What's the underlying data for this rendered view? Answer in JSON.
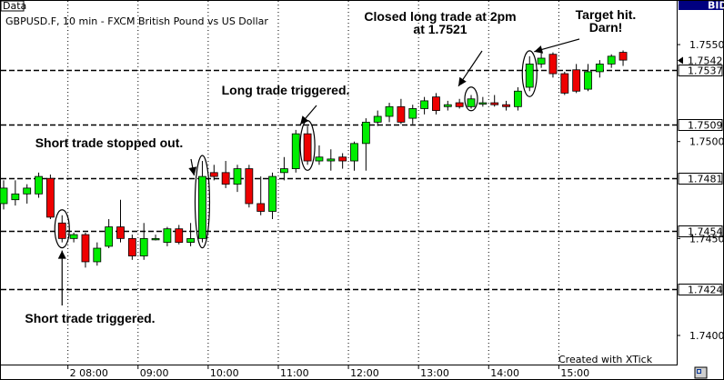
{
  "chart_data": {
    "type": "candlestick",
    "title": "GBPUSD.F, 10 min - FXCM British Pound vs US Dollar",
    "corner_label": "Data",
    "price_axis_label": "BID",
    "watermark": "Created with XTick",
    "ylim": [
      1.7385,
      1.7573
    ],
    "y_ticks": [
      1.74,
      1.745,
      1.75,
      1.755
    ],
    "x_ticks": [
      {
        "label": "2 08:00",
        "index": 5.5
      },
      {
        "label": "09:00",
        "index": 11.5
      },
      {
        "label": "10:00",
        "index": 17.5
      },
      {
        "label": "11:00",
        "index": 23.5
      },
      {
        "label": "12:00",
        "index": 29.5
      },
      {
        "label": "13:00",
        "index": 35.5
      },
      {
        "label": "14:00",
        "index": 41.5
      },
      {
        "label": "15:00",
        "index": 47.5
      }
    ],
    "colors": {
      "up": "#00ee00",
      "down": "#ee0000",
      "wick": "#000000",
      "level_box_bg": "#ffffff"
    },
    "levels": [
      {
        "value": 1.7537,
        "label": "1.7537"
      },
      {
        "value": 1.7509,
        "label": "1.7509"
      },
      {
        "value": 1.7481,
        "label": "1.7481"
      },
      {
        "value": 1.7454,
        "label": "1.7454"
      },
      {
        "value": 1.7424,
        "label": "1.7424"
      }
    ],
    "last_price": {
      "value": 1.7542,
      "label": "1.7542"
    },
    "candles": [
      {
        "o": 1.7468,
        "h": 1.748,
        "l": 1.7465,
        "c": 1.7476
      },
      {
        "o": 1.747,
        "h": 1.748,
        "l": 1.7467,
        "c": 1.7473
      },
      {
        "o": 1.7473,
        "h": 1.7478,
        "l": 1.7468,
        "c": 1.7476
      },
      {
        "o": 1.7473,
        "h": 1.7484,
        "l": 1.7471,
        "c": 1.7482
      },
      {
        "o": 1.7481,
        "h": 1.7483,
        "l": 1.746,
        "c": 1.7461
      },
      {
        "o": 1.7458,
        "h": 1.7462,
        "l": 1.7448,
        "c": 1.745
      },
      {
        "o": 1.745,
        "h": 1.7453,
        "l": 1.7448,
        "c": 1.7452
      },
      {
        "o": 1.7452,
        "h": 1.7453,
        "l": 1.7435,
        "c": 1.7438
      },
      {
        "o": 1.7438,
        "h": 1.7448,
        "l": 1.7436,
        "c": 1.7445
      },
      {
        "o": 1.7446,
        "h": 1.746,
        "l": 1.7445,
        "c": 1.7456
      },
      {
        "o": 1.7456,
        "h": 1.747,
        "l": 1.7448,
        "c": 1.745
      },
      {
        "o": 1.745,
        "h": 1.7452,
        "l": 1.7439,
        "c": 1.7441
      },
      {
        "o": 1.7441,
        "h": 1.7458,
        "l": 1.7439,
        "c": 1.745
      },
      {
        "o": 1.745,
        "h": 1.7452,
        "l": 1.7449,
        "c": 1.745
      },
      {
        "o": 1.7448,
        "h": 1.7456,
        "l": 1.7446,
        "c": 1.7455
      },
      {
        "o": 1.7455,
        "h": 1.7457,
        "l": 1.7447,
        "c": 1.7448
      },
      {
        "o": 1.7448,
        "h": 1.7458,
        "l": 1.7446,
        "c": 1.745
      },
      {
        "o": 1.745,
        "h": 1.749,
        "l": 1.7448,
        "c": 1.7482
      },
      {
        "o": 1.7484,
        "h": 1.7488,
        "l": 1.748,
        "c": 1.7482
      },
      {
        "o": 1.7484,
        "h": 1.749,
        "l": 1.7476,
        "c": 1.7478
      },
      {
        "o": 1.7478,
        "h": 1.7488,
        "l": 1.7474,
        "c": 1.7486
      },
      {
        "o": 1.7486,
        "h": 1.7488,
        "l": 1.7466,
        "c": 1.7468
      },
      {
        "o": 1.7468,
        "h": 1.7482,
        "l": 1.7462,
        "c": 1.7464
      },
      {
        "o": 1.7464,
        "h": 1.7484,
        "l": 1.746,
        "c": 1.7482
      },
      {
        "o": 1.7484,
        "h": 1.7492,
        "l": 1.748,
        "c": 1.7486
      },
      {
        "o": 1.7486,
        "h": 1.7506,
        "l": 1.7484,
        "c": 1.7504
      },
      {
        "o": 1.7504,
        "h": 1.7508,
        "l": 1.7488,
        "c": 1.749
      },
      {
        "o": 1.749,
        "h": 1.7498,
        "l": 1.7488,
        "c": 1.7492
      },
      {
        "o": 1.749,
        "h": 1.7496,
        "l": 1.7485,
        "c": 1.7491
      },
      {
        "o": 1.7492,
        "h": 1.7494,
        "l": 1.7486,
        "c": 1.749
      },
      {
        "o": 1.749,
        "h": 1.75,
        "l": 1.7485,
        "c": 1.7499
      },
      {
        "o": 1.7499,
        "h": 1.7512,
        "l": 1.7485,
        "c": 1.751
      },
      {
        "o": 1.751,
        "h": 1.7516,
        "l": 1.7508,
        "c": 1.7513
      },
      {
        "o": 1.7513,
        "h": 1.752,
        "l": 1.751,
        "c": 1.7518
      },
      {
        "o": 1.7518,
        "h": 1.7522,
        "l": 1.7509,
        "c": 1.751
      },
      {
        "o": 1.7512,
        "h": 1.7519,
        "l": 1.7509,
        "c": 1.7517
      },
      {
        "o": 1.7517,
        "h": 1.7523,
        "l": 1.7514,
        "c": 1.7521
      },
      {
        "o": 1.7523,
        "h": 1.7525,
        "l": 1.7514,
        "c": 1.7516
      },
      {
        "o": 1.7518,
        "h": 1.7521,
        "l": 1.7516,
        "c": 1.7519
      },
      {
        "o": 1.752,
        "h": 1.7522,
        "l": 1.7517,
        "c": 1.7518
      },
      {
        "o": 1.7518,
        "h": 1.7524,
        "l": 1.7517,
        "c": 1.7522
      },
      {
        "o": 1.752,
        "h": 1.7523,
        "l": 1.7518,
        "c": 1.752
      },
      {
        "o": 1.752,
        "h": 1.7524,
        "l": 1.7518,
        "c": 1.7519
      },
      {
        "o": 1.7519,
        "h": 1.7521,
        "l": 1.7516,
        "c": 1.7518
      },
      {
        "o": 1.7518,
        "h": 1.7528,
        "l": 1.7516,
        "c": 1.7526
      },
      {
        "o": 1.7528,
        "h": 1.7544,
        "l": 1.7526,
        "c": 1.754
      },
      {
        "o": 1.754,
        "h": 1.7546,
        "l": 1.7538,
        "c": 1.7543
      },
      {
        "o": 1.7545,
        "h": 1.7546,
        "l": 1.7533,
        "c": 1.7535
      },
      {
        "o": 1.7535,
        "h": 1.7536,
        "l": 1.7524,
        "c": 1.7525
      },
      {
        "o": 1.7537,
        "h": 1.754,
        "l": 1.7525,
        "c": 1.7526
      },
      {
        "o": 1.7527,
        "h": 1.754,
        "l": 1.7526,
        "c": 1.7536
      },
      {
        "o": 1.7536,
        "h": 1.7542,
        "l": 1.7533,
        "c": 1.754
      },
      {
        "o": 1.754,
        "h": 1.7545,
        "l": 1.7538,
        "c": 1.7544
      },
      {
        "o": 1.7546,
        "h": 1.7547,
        "l": 1.7539,
        "c": 1.7542
      }
    ],
    "annotations": [
      {
        "name": "short-trade-triggered",
        "lines": [
          "Short trade triggered."
        ],
        "candle": 5
      },
      {
        "name": "short-trade-stopped-out",
        "lines": [
          "Short trade stopped out."
        ],
        "candle": 17
      },
      {
        "name": "long-trade-triggered",
        "lines": [
          "Long trade triggered."
        ],
        "candle": 26
      },
      {
        "name": "closed-long-trade",
        "lines": [
          "Closed long trade at 2pm",
          "at 1.7521"
        ],
        "candle": 40
      },
      {
        "name": "target-hit",
        "lines": [
          "Target hit.",
          "Darn!"
        ],
        "candle": 45
      }
    ]
  }
}
